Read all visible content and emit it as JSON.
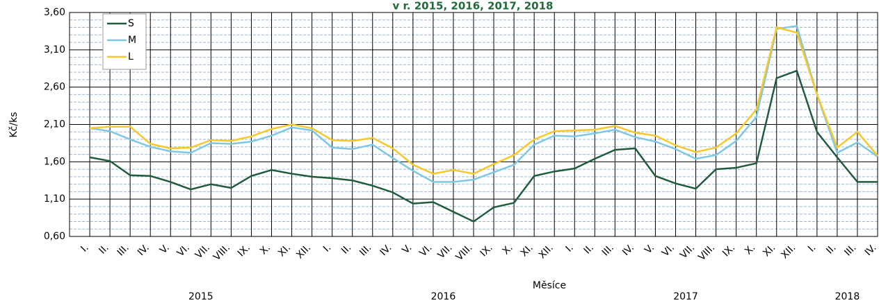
{
  "chart_data": {
    "type": "line",
    "title": "v r. 2015, 2016, 2017, 2018",
    "x_label": "Měsíce",
    "y_label": "Kč/ks",
    "categories": [
      "I.",
      "II.",
      "III.",
      "IV.",
      "V.",
      "VI.",
      "VII.",
      "VIII.",
      "IX.",
      "X.",
      "XI.",
      "XII.",
      "I.",
      "II.",
      "III.",
      "IV.",
      "V.",
      "VI.",
      "VII.",
      "VIII.",
      "IX.",
      "X.",
      "XI.",
      "XII.",
      "I.",
      "II.",
      "III.",
      "IV.",
      "V.",
      "VI.",
      "VII.",
      "VIII.",
      "IX.",
      "X.",
      "XI.",
      "XII.",
      "I.",
      "II.",
      "III.",
      "IV."
    ],
    "year_labels": [
      "2015",
      "2016",
      "2017",
      "2018"
    ],
    "series": [
      {
        "name": "S",
        "color": "#1f5c3d",
        "values": [
          1.66,
          1.61,
          1.42,
          1.41,
          1.33,
          1.23,
          1.3,
          1.25,
          1.41,
          1.49,
          1.44,
          1.4,
          1.38,
          1.35,
          1.28,
          1.19,
          1.04,
          1.06,
          0.93,
          0.8,
          0.99,
          1.05,
          1.41,
          1.47,
          1.51,
          1.64,
          1.76,
          1.78,
          1.41,
          1.31,
          1.24,
          1.5,
          1.52,
          1.58,
          2.72,
          2.82,
          2.0,
          1.66,
          1.33,
          1.33
        ]
      },
      {
        "name": "M",
        "color": "#7ec8e3",
        "values": [
          2.05,
          2.01,
          1.9,
          1.8,
          1.74,
          1.72,
          1.85,
          1.84,
          1.87,
          1.95,
          2.06,
          2.02,
          1.79,
          1.77,
          1.83,
          1.65,
          1.48,
          1.33,
          1.33,
          1.36,
          1.46,
          1.56,
          1.83,
          1.95,
          1.94,
          1.98,
          2.03,
          1.93,
          1.87,
          1.77,
          1.64,
          1.69,
          1.88,
          2.2,
          3.38,
          3.42,
          2.5,
          1.72,
          1.86,
          1.67
        ]
      },
      {
        "name": "L",
        "color": "#f7c82a",
        "values": [
          2.05,
          2.07,
          2.07,
          1.84,
          1.78,
          1.79,
          1.89,
          1.88,
          1.94,
          2.04,
          2.1,
          2.05,
          1.89,
          1.88,
          1.92,
          1.78,
          1.56,
          1.44,
          1.49,
          1.44,
          1.57,
          1.69,
          1.9,
          2.01,
          2.02,
          2.03,
          2.08,
          1.99,
          1.95,
          1.82,
          1.73,
          1.79,
          1.98,
          2.3,
          3.4,
          3.33,
          2.5,
          1.79,
          2.0,
          1.68
        ]
      }
    ],
    "ylim": [
      0.6,
      3.6
    ],
    "yticks": [
      {
        "value": 0.6,
        "label": "0,60"
      },
      {
        "value": 1.1,
        "label": "1,10"
      },
      {
        "value": 1.6,
        "label": "1,60"
      },
      {
        "value": 2.1,
        "label": "2,10"
      },
      {
        "value": 2.6,
        "label": "2,60"
      },
      {
        "value": 3.1,
        "label": "3,10"
      },
      {
        "value": 3.6,
        "label": "3,60"
      }
    ],
    "grid": true,
    "legend": "upper left"
  }
}
